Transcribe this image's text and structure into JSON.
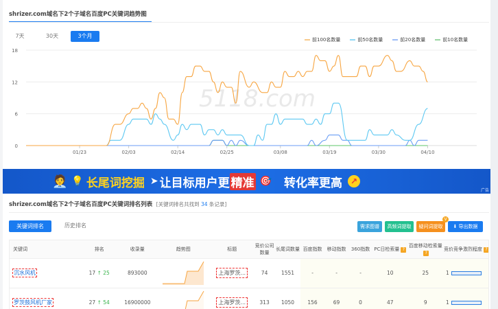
{
  "trend": {
    "title": "shrizer.com域名下2个子域名百度PC关键词趋势图",
    "tabs": [
      {
        "label": "7天",
        "active": false
      },
      {
        "label": "30天",
        "active": false
      },
      {
        "label": "3个月",
        "active": true
      }
    ],
    "legend": [
      "前100名数量",
      "前50名数量",
      "前20名数量",
      "前10名数量"
    ]
  },
  "chart_data": {
    "type": "line",
    "title": "",
    "xlabel": "",
    "ylabel": "",
    "x_ticks": [
      "01/23",
      "02/03",
      "02/14",
      "02/25",
      "03/08",
      "03/19",
      "03/30",
      "04/10"
    ],
    "y_ticks": [
      0,
      6,
      12,
      18
    ],
    "ylim": [
      0,
      18
    ],
    "xlim": [
      "01/11",
      "04/21"
    ],
    "grid": true,
    "legend_position": "top-right",
    "series": [
      {
        "name": "前100名数量",
        "color": "#f7a540",
        "points": [
          [
            "01/11",
            0
          ],
          [
            "01/29",
            0
          ],
          [
            "01/31",
            4
          ],
          [
            "02/01",
            4
          ],
          [
            "02/03",
            6
          ],
          [
            "02/04",
            7
          ],
          [
            "02/05",
            7
          ],
          [
            "02/06",
            8
          ],
          [
            "02/07",
            7
          ],
          [
            "02/08",
            5
          ],
          [
            "02/09",
            7
          ],
          [
            "02/10",
            10
          ],
          [
            "02/11",
            9
          ],
          [
            "02/12",
            5
          ],
          [
            "02/13",
            5
          ],
          [
            "02/14",
            4
          ],
          [
            "02/15",
            10
          ],
          [
            "02/16",
            13
          ],
          [
            "02/17",
            13
          ],
          [
            "02/18",
            15
          ],
          [
            "02/19",
            15
          ],
          [
            "02/20",
            14
          ],
          [
            "02/21",
            14
          ],
          [
            "02/22",
            12
          ],
          [
            "02/23",
            10
          ],
          [
            "02/24",
            12
          ],
          [
            "02/25",
            11
          ],
          [
            "02/26",
            11
          ],
          [
            "02/27",
            8
          ],
          [
            "02/28",
            14
          ],
          [
            "03/01",
            11
          ],
          [
            "03/02",
            12
          ],
          [
            "03/04",
            10
          ],
          [
            "03/05",
            10
          ],
          [
            "03/06",
            12
          ],
          [
            "03/07",
            11
          ],
          [
            "03/08",
            11
          ],
          [
            "03/09",
            14
          ],
          [
            "03/10",
            13
          ],
          [
            "03/11",
            13
          ],
          [
            "03/12",
            14
          ],
          [
            "03/13",
            13
          ],
          [
            "03/14",
            14
          ],
          [
            "03/15",
            14
          ],
          [
            "03/16",
            17
          ],
          [
            "03/17",
            16
          ],
          [
            "03/18",
            16
          ],
          [
            "03/19",
            14
          ],
          [
            "03/20",
            15
          ],
          [
            "03/21",
            17
          ],
          [
            "03/22",
            13
          ],
          [
            "03/25",
            13
          ],
          [
            "03/26",
            15
          ],
          [
            "03/27",
            15
          ],
          [
            "03/28",
            13
          ],
          [
            "03/29",
            15
          ],
          [
            "03/30",
            15
          ],
          [
            "04/01",
            17
          ],
          [
            "04/02",
            16
          ],
          [
            "04/03",
            14
          ],
          [
            "04/04",
            14
          ],
          [
            "04/06",
            16
          ],
          [
            "04/07",
            15
          ],
          [
            "04/08",
            15
          ],
          [
            "04/09",
            14
          ],
          [
            "04/10",
            12
          ]
        ]
      },
      {
        "name": "前50名数量",
        "color": "#5cc8f2",
        "points": [
          [
            "01/11",
            0
          ],
          [
            "01/29",
            0
          ],
          [
            "01/30",
            1
          ],
          [
            "02/01",
            1
          ],
          [
            "02/03",
            4
          ],
          [
            "02/04",
            5
          ],
          [
            "02/07",
            5
          ],
          [
            "02/08",
            4
          ],
          [
            "02/09",
            6
          ],
          [
            "02/10",
            5
          ],
          [
            "02/11",
            4
          ],
          [
            "02/13",
            1
          ],
          [
            "02/14",
            2
          ],
          [
            "02/15",
            4
          ],
          [
            "02/16",
            3
          ],
          [
            "02/17",
            4
          ],
          [
            "02/19",
            4
          ],
          [
            "02/20",
            2
          ],
          [
            "02/21",
            3
          ],
          [
            "02/22",
            3
          ],
          [
            "02/23",
            2
          ],
          [
            "02/24",
            3
          ],
          [
            "02/25",
            2
          ],
          [
            "02/28",
            2
          ],
          [
            "03/01",
            0
          ],
          [
            "03/02",
            0
          ],
          [
            "03/03",
            2
          ],
          [
            "03/04",
            1
          ],
          [
            "03/05",
            4
          ],
          [
            "03/06",
            4
          ],
          [
            "03/07",
            6
          ],
          [
            "03/08",
            4
          ],
          [
            "03/09",
            5
          ],
          [
            "03/13",
            5
          ],
          [
            "03/14",
            4
          ],
          [
            "03/15",
            4
          ],
          [
            "03/16",
            5
          ],
          [
            "03/17",
            4
          ],
          [
            "03/18",
            6
          ],
          [
            "03/19",
            6
          ],
          [
            "03/20",
            8
          ],
          [
            "03/21",
            8
          ],
          [
            "03/23",
            1
          ],
          [
            "03/27",
            1
          ],
          [
            "03/28",
            3
          ],
          [
            "03/29",
            2
          ],
          [
            "04/01",
            2
          ],
          [
            "04/02",
            3
          ],
          [
            "04/03",
            2
          ],
          [
            "04/05",
            1
          ],
          [
            "04/06",
            1
          ],
          [
            "04/08",
            4
          ],
          [
            "04/10",
            7
          ]
        ]
      },
      {
        "name": "前20名数量",
        "color": "#6b9ef5",
        "points": [
          [
            "01/11",
            0
          ],
          [
            "02/21",
            0
          ],
          [
            "02/22",
            1
          ],
          [
            "02/24",
            1
          ],
          [
            "02/25",
            0
          ],
          [
            "02/26",
            1
          ],
          [
            "02/27",
            0
          ],
          [
            "02/28",
            1
          ],
          [
            "03/01",
            0
          ],
          [
            "03/14",
            0
          ],
          [
            "03/15",
            1
          ],
          [
            "03/16",
            0
          ],
          [
            "03/18",
            1
          ],
          [
            "03/19",
            2
          ],
          [
            "03/21",
            2
          ],
          [
            "03/22",
            1
          ],
          [
            "03/23",
            1
          ],
          [
            "03/24",
            0
          ],
          [
            "04/05",
            0
          ],
          [
            "04/06",
            1
          ],
          [
            "04/07",
            0
          ],
          [
            "04/08",
            1
          ],
          [
            "04/10",
            1
          ]
        ]
      },
      {
        "name": "前10名数量",
        "color": "#5cc46a",
        "points": [
          [
            "01/11",
            0
          ],
          [
            "02/21",
            0
          ],
          [
            "02/22",
            1
          ],
          [
            "02/24",
            1
          ],
          [
            "02/25",
            0
          ],
          [
            "04/10",
            0
          ]
        ]
      }
    ]
  },
  "watermark": "5118.com",
  "banner": {
    "part1": "长尾词挖掘",
    "part2": "让目标用户更",
    "highlight": "精准",
    "part3": "转化率更高",
    "ad": "广告"
  },
  "list": {
    "title": "shrizer.com域名下2个子域名百度PC关键词排名列表",
    "count_prefix": "[关键词排名共找到",
    "count": "34",
    "count_suffix": "条记录]",
    "tabs": [
      "关键词排名",
      "历史排名"
    ],
    "buttons": [
      "需求图谱",
      "高频词提取",
      "疑问词提取",
      "导出数据"
    ],
    "columns": [
      "关键词",
      "排名",
      "收录量",
      "趋势图",
      "标题",
      "竞价公司数量",
      "长尾词数量",
      "百度指数",
      "移动指数",
      "360指数",
      "PC日检索量",
      "百度移动检索量",
      "竞价竞争激烈程度"
    ],
    "rows": [
      {
        "keyword": "沉水风机",
        "rank": "17",
        "rank_change": "25",
        "indexed": "893000",
        "title": "上海罗茨...",
        "bid_companies": "74",
        "longtail": "1551",
        "baidu_index": "-",
        "mobile_index": "-",
        "index360": "-",
        "pc_daily": "10",
        "mobile_daily": "25",
        "competition": "1"
      },
      {
        "keyword": "罗茨鼓风机厂家",
        "rank": "27",
        "rank_change": "54",
        "indexed": "16900000",
        "title": "上海罗茨...",
        "bid_companies": "313",
        "longtail": "1050",
        "baidu_index": "156",
        "mobile_index": "69",
        "index360": "0",
        "pc_daily": "47",
        "mobile_daily": "9",
        "competition": "1"
      }
    ]
  }
}
